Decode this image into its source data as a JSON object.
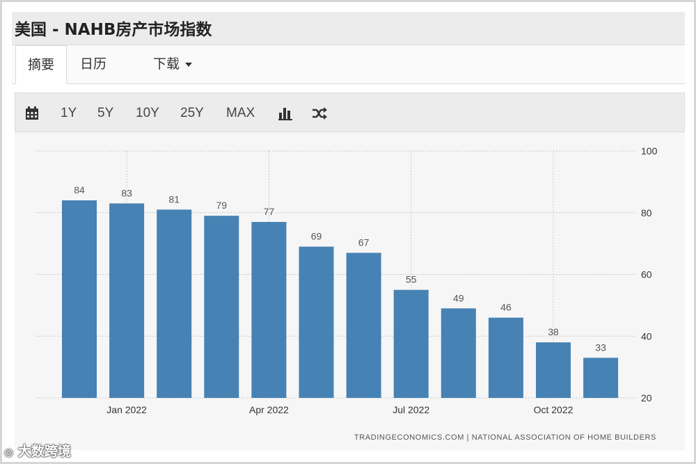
{
  "header": {
    "title": "美国 - NAHB房产市场指数"
  },
  "tabs": [
    {
      "label": "摘要"
    },
    {
      "label": "日历"
    },
    {
      "label": "下载"
    }
  ],
  "toolbar": {
    "calendar_icon": "calendar-icon",
    "ranges": [
      "1Y",
      "5Y",
      "10Y",
      "25Y",
      "MAX"
    ],
    "bar_chart_icon": "bar-chart-icon",
    "shuffle_icon": "shuffle-icon"
  },
  "chart_data": {
    "type": "bar",
    "categories": [
      "2021-12",
      "2022-01",
      "2022-02",
      "2022-03",
      "2022-04",
      "2022-05",
      "2022-06",
      "2022-07",
      "2022-08",
      "2022-09",
      "2022-10",
      "2022-11"
    ],
    "values": [
      84,
      83,
      81,
      79,
      77,
      69,
      67,
      55,
      49,
      46,
      38,
      33
    ],
    "data_labels": [
      "84",
      "83",
      "81",
      "79",
      "77",
      "69",
      "67",
      "55",
      "49",
      "46",
      "38",
      "33"
    ],
    "x_ticks": [
      {
        "label": "Jan 2022",
        "category": "2022-01"
      },
      {
        "label": "Apr 2022",
        "category": "2022-04"
      },
      {
        "label": "Jul 2022",
        "category": "2022-07"
      },
      {
        "label": "Oct 2022",
        "category": "2022-10"
      }
    ],
    "y_ticks": [
      20,
      40,
      60,
      80,
      100
    ],
    "ylim": [
      20,
      100
    ],
    "y_axis_position": "right",
    "grid": true,
    "bar_color": "#4682b4",
    "source": "TRADINGECONOMICS.COM  |  NATIONAL ASSOCIATION OF HOME BUILDERS"
  },
  "watermark": {
    "text": "大数跨境"
  }
}
